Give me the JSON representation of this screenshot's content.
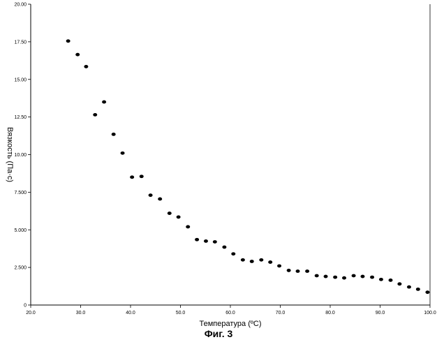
{
  "chart_data": {
    "type": "scatter",
    "xlabel": "Температура (ºC)",
    "ylabel": "Вязкость (Па·с)",
    "xlim": [
      20.0,
      100.0
    ],
    "ylim": [
      0,
      20.0
    ],
    "x_ticks": [
      "20.0",
      "30.0",
      "40.0",
      "50.0",
      "60.0",
      "70.0",
      "80.0",
      "90.0",
      "100.0"
    ],
    "y_ticks": [
      "0",
      "2.500",
      "5.000",
      "7.500",
      "10.00",
      "12.50",
      "15.00",
      "17.50",
      "20.00"
    ],
    "grid": false,
    "legend": "none",
    "point_color": "#000000",
    "series": [
      {
        "x": [
          27.5,
          29.4,
          31.1,
          32.9,
          34.7,
          36.6,
          38.4,
          40.3,
          42.2,
          44.0,
          45.9,
          47.8,
          49.6,
          51.5,
          53.3,
          55.1,
          56.9,
          58.8,
          60.6,
          62.5,
          64.3,
          66.2,
          68.0,
          69.8,
          71.7,
          73.5,
          75.4,
          77.3,
          79.1,
          81.0,
          82.8,
          84.7,
          86.5,
          88.4,
          90.2,
          92.1,
          93.9,
          95.8,
          97.6,
          99.5
        ],
        "y": [
          17.55,
          16.65,
          15.85,
          12.65,
          13.5,
          11.35,
          10.1,
          8.5,
          8.55,
          7.3,
          7.05,
          6.1,
          5.85,
          5.2,
          4.35,
          4.25,
          4.2,
          3.85,
          3.4,
          3.0,
          2.9,
          3.0,
          2.85,
          2.6,
          2.3,
          2.25,
          2.25,
          1.95,
          1.9,
          1.85,
          1.8,
          1.95,
          1.9,
          1.85,
          1.7,
          1.65,
          1.4,
          1.2,
          1.05,
          0.85
        ]
      }
    ]
  },
  "caption": "Фиг. 3"
}
